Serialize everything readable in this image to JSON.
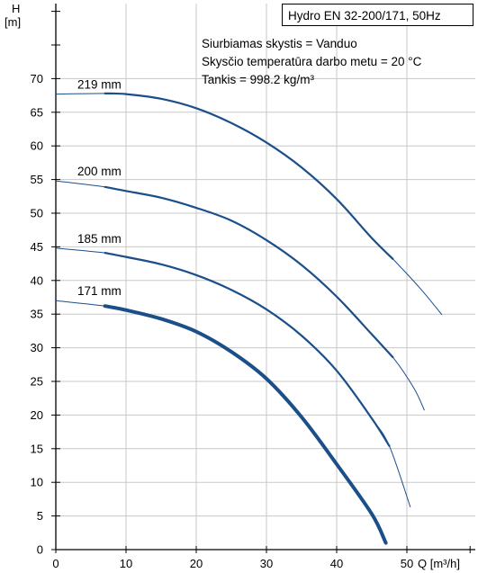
{
  "chart_data": {
    "type": "line",
    "title_box": "Hydro EN 32-200/171, 50Hz",
    "info_lines": [
      "Siurbiamas skystis = Vanduo",
      "Skysčio temperatūra darbo metu = 20 °C",
      "Tankis = 998.2 kg/m³"
    ],
    "ylabel_top": "H",
    "ylabel_unit": "[m]",
    "xlabel": "Q [m³/h]",
    "xlim": [
      0,
      59
    ],
    "ylim": [
      0,
      78
    ],
    "x_ticks": [
      0,
      10,
      20,
      30,
      40,
      50
    ],
    "y_ticks": [
      0,
      5,
      10,
      15,
      20,
      25,
      30,
      35,
      40,
      45,
      50,
      55,
      60,
      65,
      70
    ],
    "grid": true,
    "colors": {
      "curve": "#1b4f8a",
      "grid": "#c8c8c8",
      "axis": "#000000"
    },
    "series": [
      {
        "name": "219 mm",
        "x": [
          0,
          7,
          10,
          15,
          20,
          25,
          30,
          35,
          40,
          45,
          48,
          52,
          55
        ],
        "y": [
          67.7,
          67.8,
          67.7,
          67.0,
          65.6,
          63.4,
          60.5,
          56.8,
          52.1,
          46.3,
          43.2,
          38.7,
          34.9
        ],
        "bold_range": [
          7,
          48
        ]
      },
      {
        "name": "200 mm",
        "x": [
          0,
          7,
          10,
          15,
          20,
          25,
          30,
          35,
          40,
          45,
          48,
          51,
          52.5
        ],
        "y": [
          54.8,
          53.9,
          53.3,
          52.3,
          50.8,
          48.9,
          46.0,
          42.3,
          37.6,
          32.0,
          28.6,
          24.0,
          20.7
        ],
        "bold_range": [
          7,
          48
        ]
      },
      {
        "name": "185 mm",
        "x": [
          0,
          7,
          10,
          15,
          20,
          25,
          30,
          35,
          40,
          45,
          47.5,
          50.5
        ],
        "y": [
          44.8,
          44.1,
          43.5,
          42.4,
          40.8,
          38.6,
          35.7,
          31.8,
          26.6,
          19.5,
          15.4,
          6.3
        ],
        "bold_range": [
          7,
          47.5
        ]
      },
      {
        "name": "171 mm",
        "x": [
          0,
          7,
          10,
          15,
          20,
          25,
          30,
          35,
          40,
          45,
          47
        ],
        "y": [
          37.0,
          36.2,
          35.6,
          34.3,
          32.4,
          29.4,
          25.4,
          19.7,
          12.7,
          5.3,
          1.0
        ],
        "bold_range": [
          7,
          47
        ]
      }
    ]
  }
}
